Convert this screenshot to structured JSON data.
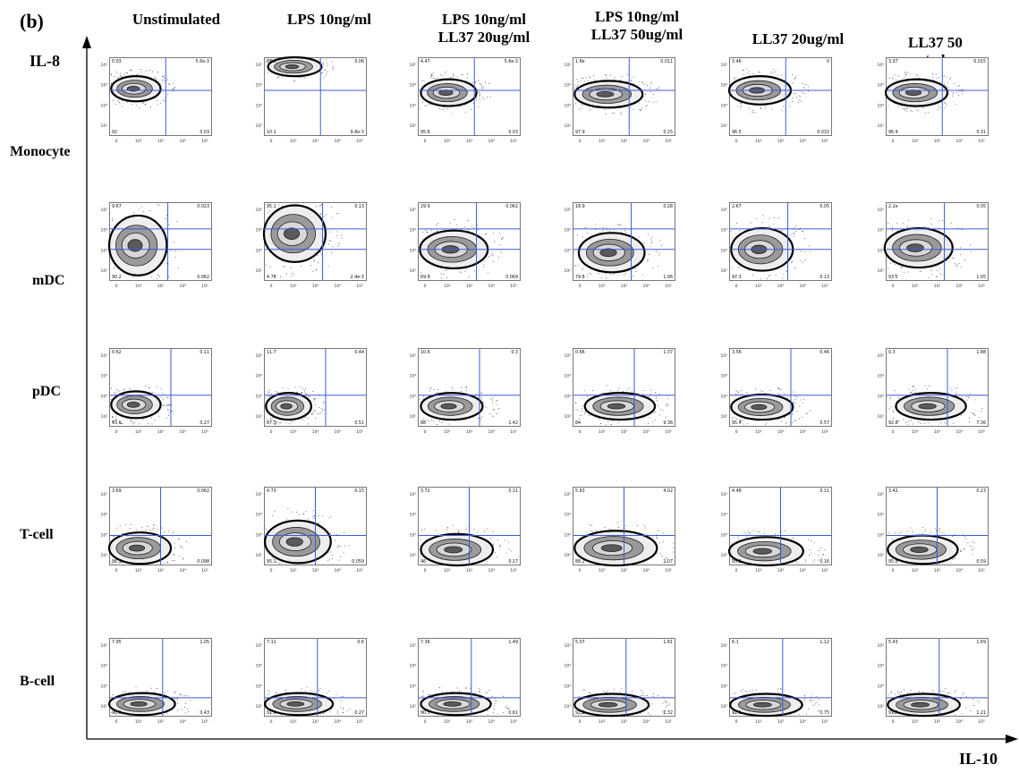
{
  "panel_tag": "(b)",
  "y_axis_label": "IL-8",
  "x_axis_label": "IL-10",
  "conditions": [
    [
      "Unstimulated"
    ],
    [
      "LPS 10ng/ml"
    ],
    [
      "LPS 10ng/ml",
      "LL37 20ug/ml"
    ],
    [
      "LPS 10ng/ml",
      "LL37 50ug/ml"
    ],
    [
      "LL37 20ug/ml"
    ],
    [
      "LL37 50",
      "ug/ml"
    ]
  ],
  "cell_types": [
    "Monocyte",
    "mDC",
    "pDC",
    "T-cell",
    "B-cell"
  ],
  "colors": {
    "gate": "#3b5bd9",
    "contour": "#000000",
    "fill_light": "#e6e6e6",
    "fill_dark": "#7a7a7a"
  },
  "chart_data": {
    "type": "contour",
    "description_layout": "grid of flow cytometry contour plots; rows = cell types, columns = stimulation conditions",
    "x_ticks": [
      "0",
      "10²",
      "10³",
      "10⁴",
      "10⁵"
    ],
    "y_ticks": [
      "10²",
      "10³",
      "10⁴",
      "10⁵"
    ],
    "quadrant_values": [
      [
        [
          "0.03",
          "5.6e-3",
          "92",
          "0.03"
        ],
        [
          "89.9",
          "0.06",
          "10.1",
          "9.8e-3"
        ],
        [
          "4.47",
          "5.6e-3",
          "95.6",
          "0.03"
        ],
        [
          "1.8e",
          "0.011",
          "97.9",
          "0.25"
        ],
        [
          "3.46",
          "0",
          "96.5",
          "0.032"
        ],
        [
          "3.07",
          "0.015",
          "96.9",
          "0.31"
        ]
      ],
      [
        [
          "9.67",
          "0.023",
          "90.2",
          "0.062"
        ],
        [
          "95.1",
          "0.13",
          "4.76",
          "2.4e-3"
        ],
        [
          "29.9",
          "0.062",
          "69.9",
          "0.069"
        ],
        [
          "18.9",
          "0.28",
          "79.8",
          "1.06"
        ],
        [
          "2.67",
          "0.05",
          "97.3",
          "0.13"
        ],
        [
          "2.2e",
          "0.05",
          "93.5",
          "1.05"
        ]
      ],
      [
        [
          "0.62",
          "0.11",
          "93.6",
          "0.27"
        ],
        [
          "11.7",
          "0.44",
          "87.3",
          "0.51"
        ],
        [
          "10.6",
          "0.3",
          "88",
          "1.42"
        ],
        [
          "0.66",
          "1.37",
          "84",
          "9.36"
        ],
        [
          "3.56",
          "0.46",
          "95.4",
          "0.57"
        ],
        [
          "0.3",
          "1.88",
          "92.8",
          "7.36"
        ]
      ],
      [
        [
          "3.69",
          "0.062",
          "96.1",
          "0.098"
        ],
        [
          "4.73",
          "0.15",
          "95.1",
          "0.059"
        ],
        [
          "3.72",
          "0.11",
          "96",
          "0.17"
        ],
        [
          "5.83",
          "4.02",
          "88.2",
          "2.07"
        ],
        [
          "4.48",
          "0.11",
          "95.2",
          "0.16"
        ],
        [
          "3.42",
          "0.23",
          "95.8",
          "0.59"
        ]
      ],
      [
        [
          "7.95",
          "1.05",
          "90.6",
          "0.43"
        ],
        [
          "7.11",
          "0.6",
          "91.8",
          "0.27"
        ],
        [
          "7.36",
          "1.49",
          "90.5",
          "0.61"
        ],
        [
          "5.07",
          "1.81",
          "91.8",
          "1.32"
        ],
        [
          "6.1",
          "1.12",
          "92.1",
          "0.75"
        ],
        [
          "5.43",
          "1.69",
          "91.7",
          "1.21"
        ]
      ]
    ]
  }
}
